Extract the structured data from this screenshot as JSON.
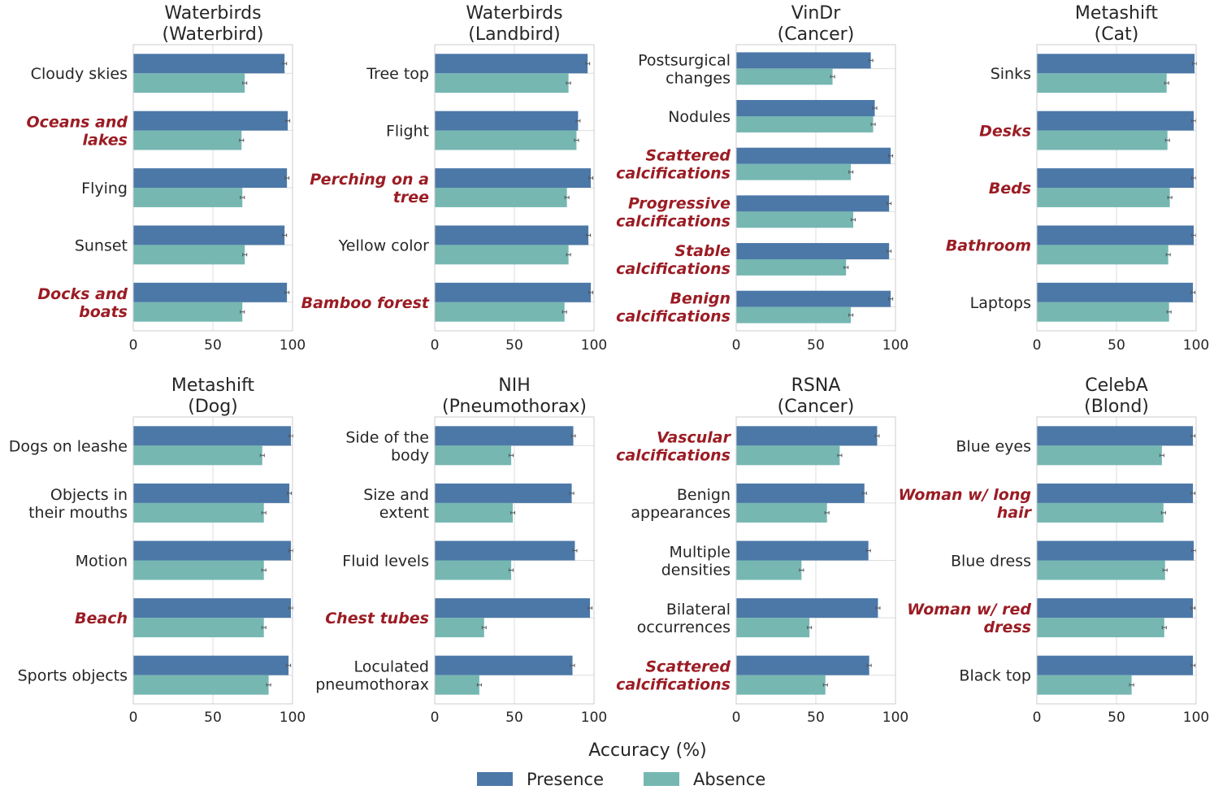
{
  "chart_data": [
    {
      "type": "bar",
      "orientation": "horizontal",
      "title": [
        "Waterbirds",
        "(Waterbird)"
      ],
      "categories": [
        [
          "Cloudy skies"
        ],
        [
          "Oceans and",
          "lakes"
        ],
        [
          "Flying"
        ],
        [
          "Sunset"
        ],
        [
          "Docks and",
          "boats"
        ]
      ],
      "highlighted": [
        false,
        true,
        false,
        false,
        true
      ],
      "series": [
        {
          "name": "Presence",
          "values": [
            95,
            97,
            96.5,
            95,
            96.5
          ]
        },
        {
          "name": "Absence",
          "values": [
            70,
            68,
            68.5,
            70,
            68.5
          ]
        }
      ],
      "xlim": [
        0,
        100
      ],
      "xticks": [
        "0",
        "50",
        "100"
      ]
    },
    {
      "type": "bar",
      "orientation": "horizontal",
      "title": [
        "Waterbirds",
        "(Landbird)"
      ],
      "categories": [
        [
          "Tree top"
        ],
        [
          "Flight"
        ],
        [
          "Perching on a",
          "tree"
        ],
        [
          "Yellow color"
        ],
        [
          "Bamboo forest"
        ]
      ],
      "highlighted": [
        false,
        false,
        true,
        false,
        true
      ],
      "series": [
        {
          "name": "Presence",
          "values": [
            96,
            90,
            98,
            96.5,
            98
          ]
        },
        {
          "name": "Absence",
          "values": [
            84,
            89,
            83,
            84,
            81.5
          ]
        }
      ],
      "xlim": [
        0,
        100
      ],
      "xticks": [
        "0",
        "50",
        "100"
      ]
    },
    {
      "type": "bar",
      "orientation": "horizontal",
      "title": [
        "VinDr",
        "(Cancer)"
      ],
      "categories": [
        [
          "Postsurgical",
          "changes"
        ],
        [
          "Nodules"
        ],
        [
          "Scattered",
          "calcifications"
        ],
        [
          "Progressive",
          "calcifications"
        ],
        [
          "Stable",
          "calcifications"
        ],
        [
          "Benign",
          "calcifications"
        ]
      ],
      "highlighted": [
        false,
        false,
        true,
        true,
        true,
        true
      ],
      "series": [
        {
          "name": "Presence",
          "values": [
            84.5,
            87,
            97,
            96,
            96,
            97
          ]
        },
        {
          "name": "Absence",
          "values": [
            60.5,
            86,
            72,
            73.5,
            69,
            72
          ]
        }
      ],
      "xlim": [
        0,
        100
      ],
      "xticks": [
        "0",
        "50",
        "100"
      ]
    },
    {
      "type": "bar",
      "orientation": "horizontal",
      "title": [
        "Metashift",
        "(Cat)"
      ],
      "categories": [
        [
          "Sinks"
        ],
        [
          "Desks"
        ],
        [
          "Beds"
        ],
        [
          "Bathroom"
        ],
        [
          "Laptops"
        ]
      ],
      "highlighted": [
        false,
        true,
        true,
        true,
        false
      ],
      "series": [
        {
          "name": "Presence",
          "values": [
            99,
            98.5,
            98.5,
            98.5,
            98
          ]
        },
        {
          "name": "Absence",
          "values": [
            81.5,
            82,
            83.5,
            82.5,
            83
          ]
        }
      ],
      "xlim": [
        0,
        100
      ],
      "xticks": [
        "0",
        "50",
        "100"
      ]
    },
    {
      "type": "bar",
      "orientation": "horizontal",
      "title": [
        "Metashift",
        "(Dog)"
      ],
      "categories": [
        [
          "Dogs on leashe"
        ],
        [
          "Objects in",
          "their mouths"
        ],
        [
          "Motion"
        ],
        [
          "Beach"
        ],
        [
          "Sports objects"
        ]
      ],
      "highlighted": [
        false,
        false,
        false,
        true,
        false
      ],
      "series": [
        {
          "name": "Presence",
          "values": [
            99,
            98,
            99,
            99,
            97.5
          ]
        },
        {
          "name": "Absence",
          "values": [
            81,
            82,
            82,
            82,
            85
          ]
        }
      ],
      "xlim": [
        0,
        100
      ],
      "xticks": [
        "0",
        "50",
        "100"
      ]
    },
    {
      "type": "bar",
      "orientation": "horizontal",
      "title": [
        "NIH",
        "(Pneumothorax)"
      ],
      "categories": [
        [
          "Side of the",
          "body"
        ],
        [
          "Size and",
          "extent"
        ],
        [
          "Fluid levels"
        ],
        [
          "Chest tubes"
        ],
        [
          "Loculated",
          "pneumothorax"
        ]
      ],
      "highlighted": [
        false,
        false,
        false,
        true,
        false
      ],
      "series": [
        {
          "name": "Presence",
          "values": [
            87,
            86,
            88,
            97.5,
            86.5
          ]
        },
        {
          "name": "Absence",
          "values": [
            48,
            49,
            48,
            31,
            28
          ]
        }
      ],
      "xlim": [
        0,
        100
      ],
      "xticks": [
        "0",
        "50",
        "100"
      ]
    },
    {
      "type": "bar",
      "orientation": "horizontal",
      "title": [
        "RSNA",
        "(Cancer)"
      ],
      "categories": [
        [
          "Vascular",
          "calcifications"
        ],
        [
          "Benign",
          "appearances"
        ],
        [
          "Multiple",
          "densities"
        ],
        [
          "Bilateral",
          "occurrences"
        ],
        [
          "Scattered",
          "calcifications"
        ]
      ],
      "highlighted": [
        true,
        false,
        false,
        false,
        true
      ],
      "series": [
        {
          "name": "Presence",
          "values": [
            88.5,
            80.5,
            83,
            89,
            83.5
          ]
        },
        {
          "name": "Absence",
          "values": [
            65,
            57,
            41,
            46,
            56
          ]
        }
      ],
      "xlim": [
        0,
        100
      ],
      "xticks": [
        "0",
        "50",
        "100"
      ]
    },
    {
      "type": "bar",
      "orientation": "horizontal",
      "title": [
        "CelebA",
        "(Blond)"
      ],
      "categories": [
        [
          "Blue eyes"
        ],
        [
          "Woman w/ long",
          "hair"
        ],
        [
          "Blue dress"
        ],
        [
          "Woman w/ red",
          "dress"
        ],
        [
          "Black top"
        ]
      ],
      "highlighted": [
        false,
        true,
        false,
        true,
        false
      ],
      "series": [
        {
          "name": "Presence",
          "values": [
            98,
            98,
            98.5,
            98,
            98
          ]
        },
        {
          "name": "Absence",
          "values": [
            78.5,
            79.5,
            80.5,
            80,
            59.5
          ]
        }
      ],
      "xlim": [
        0,
        100
      ],
      "xticks": [
        "0",
        "50",
        "100"
      ]
    }
  ],
  "xlabel": "Accuracy (%)",
  "legend": {
    "position": "bottom-center",
    "items": [
      {
        "label": "Presence",
        "color": "#4c78a8"
      },
      {
        "label": "Absence",
        "color": "#76b7b2"
      }
    ]
  },
  "colors": {
    "presence": "#4c78a8",
    "absence": "#76b7b2",
    "highlight_text": "#9b1c24",
    "text": "#262626",
    "grid": "#dddddd",
    "frame": "#cccccc"
  }
}
